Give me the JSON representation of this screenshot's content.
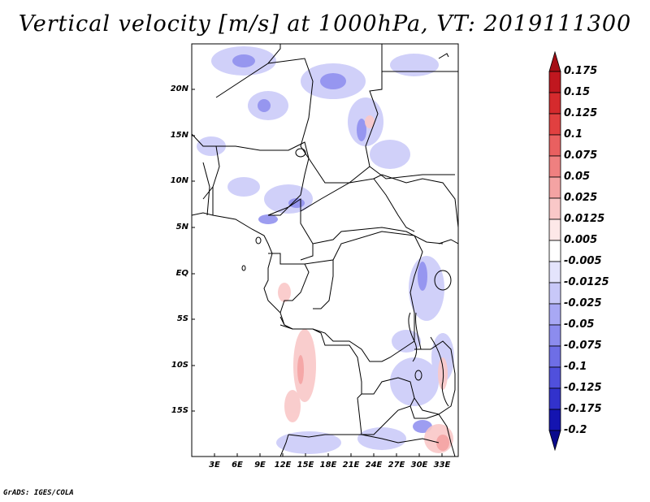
{
  "title": "Vertical velocity [m/s] at 1000hPa, VT: 2019111300",
  "footer": "GrADS: IGES/COLA",
  "map": {
    "lat_labels": [
      "20N",
      "15N",
      "10N",
      "5N",
      "EQ",
      "5S",
      "10S",
      "15S"
    ],
    "lon_labels": [
      "3E",
      "6E",
      "9E",
      "12E",
      "15E",
      "18E",
      "21E",
      "24E",
      "27E",
      "30E",
      "33E"
    ]
  },
  "colorbar": {
    "labels": [
      "0.175",
      "0.15",
      "0.125",
      "0.1",
      "0.075",
      "0.05",
      "0.025",
      "0.0125",
      "0.005",
      "-0.005",
      "-0.0125",
      "-0.025",
      "-0.05",
      "-0.075",
      "-0.1",
      "-0.125",
      "-0.175",
      "-0.2"
    ],
    "colors": [
      "#a50f15",
      "#c0171f",
      "#d52a2d",
      "#e14040",
      "#e96060",
      "#ef8080",
      "#f4a3a3",
      "#f9c8c8",
      "#fde8e8",
      "#ffffff",
      "#e4e4fc",
      "#c8c8f8",
      "#a8a8f4",
      "#8c8cee",
      "#6e6ee6",
      "#5050dc",
      "#3232cc",
      "#1414b0",
      "#0a0a8c"
    ]
  }
}
